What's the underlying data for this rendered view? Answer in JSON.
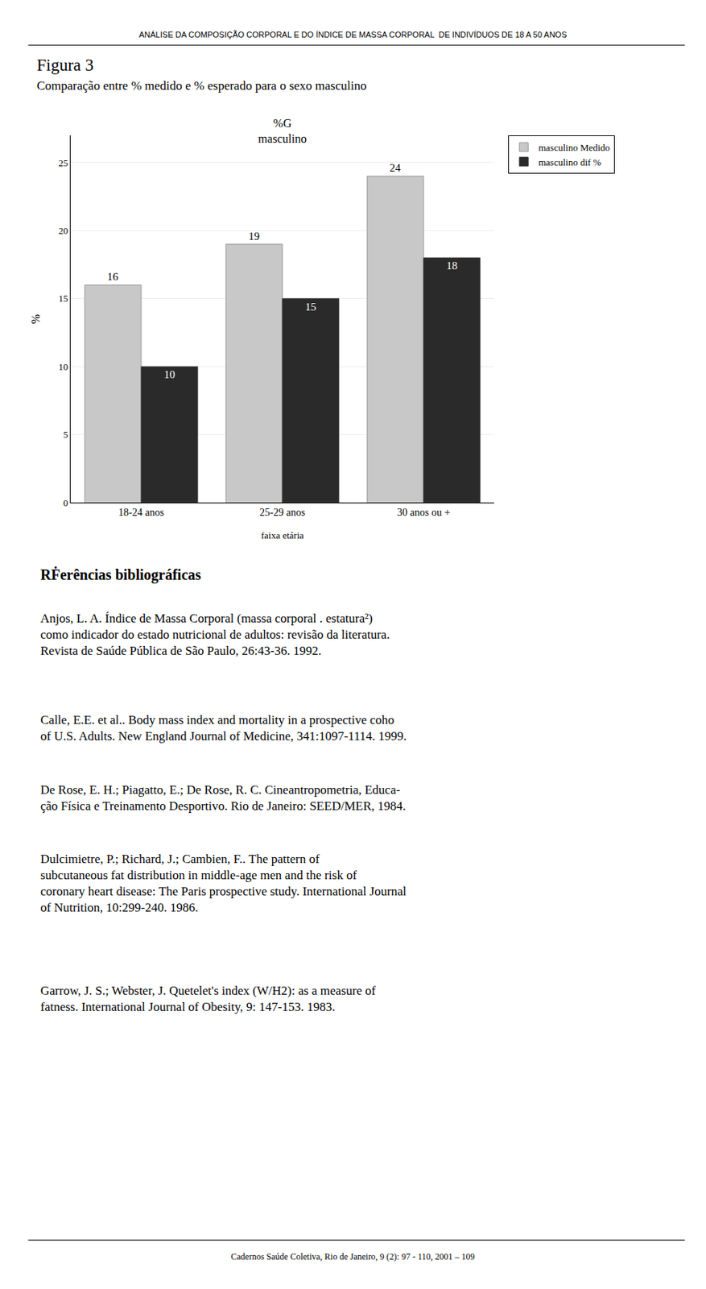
{
  "header": "ANÁLISE DA COMPOSIÇÃO CORPORAL E DO ÍNDICE DE MASSA CORPORAL  DE INDIVÍDUOS DE 18 A 50 ANOS",
  "figure_label": "Figura 3",
  "references_title": "RḞerências bibliográficas",
  "references": [
    "Anjos, L. A. Índice de Massa Corporal (massa corporal . estatura²)\ncomo indicador do estado nutricional de adultos: revisão da literatura.\nRevista de Saúde Pública de São Paulo, 26:43-36. 1992.",
    "Calle, E.E. et al.. Body mass index and mortality in a prospective coho\nof U.S. Adults. New England Journal of Medicine, 341:1097-1114. 1999.",
    "De Rose, E. H.; Piagatto, E.; De Rose, R. C. Cineantropometria, Educa-\nção Física e Treinamento Desportivo. Rio de Janeiro: SEED/MER, 1984.",
    "Dulcimietre, P.; Richard, J.; Cambien, F.. The pattern of\nsubcutaneous fat distribution in middle-age men and the risk of\ncoronary heart disease: The Paris prospective study. International Journal\nof Nutrition, 10:299-240. 1986.",
    "Garrow, J. S.; Webster, J. Quetelet's index (W/H2): as a measure of\nfatness. International Journal of Obesity, 9: 147-153. 1983."
  ],
  "footer": "Cadernos Saúde Coletiva, Rio de Janeiro, 9 (2): 97 - 110, 2001 – 109",
  "chart_data": {
    "type": "bar",
    "title": "%G\nmasculino",
    "subtitle": "Comparação entre % medido e % esperado para o sexo masculino",
    "xlabel": "faixa etária",
    "ylabel": "%",
    "categories": [
      "18-24 anos",
      "25-29 anos",
      "30 anos ou +"
    ],
    "series": [
      {
        "name": "masculino Medido",
        "color": "#c8c8c8",
        "values": [
          16,
          19,
          24
        ]
      },
      {
        "name": "masculino dif %",
        "color": "#2a2a2a",
        "values": [
          10,
          15,
          18
        ]
      }
    ],
    "ylim": [
      0,
      27
    ],
    "yticks": [
      0,
      5,
      10,
      15,
      20,
      25
    ],
    "grid": true,
    "legend": "upper right",
    "data_labels": true
  }
}
